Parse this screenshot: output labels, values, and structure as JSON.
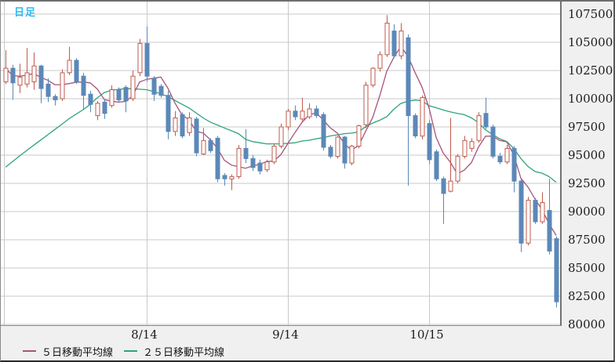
{
  "panel": {
    "title": "日足",
    "title_color": "#2cb9ee"
  },
  "colors": {
    "up_candle": "#bf5b4d",
    "down_candle": "#5b88b8",
    "ma5_line": "#a8537b",
    "ma25_line": "#2fa37b",
    "gridline": "#c9c9c9",
    "axis_text": "#1c1c1c",
    "plot_bg": "#ffffff",
    "frame_bg": "#f0f0f0"
  },
  "legend": {
    "items": [
      {
        "label": "５日移動平均線",
        "color": "#a8537b"
      },
      {
        "label": "２５日移動平均線",
        "color": "#2fa37b"
      }
    ]
  },
  "chart_data": {
    "type": "candlestick",
    "title": "日足",
    "ylabel": "",
    "xlabel": "",
    "grid": true,
    "legend_position": "bottom",
    "y_ticks": [
      107500,
      105000,
      102500,
      100000,
      97500,
      95000,
      92500,
      90000,
      87500,
      85000,
      82500,
      80000
    ],
    "y_visible_range": [
      79930,
      108611
    ],
    "x_ticks": [
      {
        "label": "8/14",
        "index": 20
      },
      {
        "label": "9/14",
        "index": 40
      },
      {
        "label": "10/15",
        "index": 60
      }
    ],
    "candles_ohlc": [
      [
        101500,
        104300,
        101300,
        102700
      ],
      [
        102700,
        103000,
        99900,
        101400
      ],
      [
        101200,
        103100,
        100500,
        101900
      ],
      [
        101300,
        104500,
        101000,
        102300
      ],
      [
        101500,
        104100,
        100800,
        102900
      ],
      [
        102900,
        103000,
        99600,
        100900
      ],
      [
        101300,
        101800,
        99700,
        100200
      ],
      [
        100200,
        100400,
        99400,
        99900
      ],
      [
        100000,
        102600,
        99800,
        102300
      ],
      [
        102300,
        104600,
        102100,
        103400
      ],
      [
        103400,
        103600,
        101300,
        101500
      ],
      [
        102000,
        102300,
        99000,
        100300
      ],
      [
        100400,
        100700,
        98800,
        99500
      ],
      [
        98500,
        99800,
        98100,
        99600
      ],
      [
        99700,
        99900,
        98200,
        98700
      ],
      [
        99400,
        101200,
        99200,
        100800
      ],
      [
        100800,
        101000,
        99700,
        99900
      ],
      [
        101000,
        101200,
        98800,
        99800
      ],
      [
        100000,
        102500,
        99800,
        102000
      ],
      [
        102300,
        105300,
        102000,
        104900
      ],
      [
        104900,
        106400,
        101500,
        102000
      ],
      [
        101800,
        102000,
        99800,
        100400
      ],
      [
        101100,
        101300,
        100100,
        100300
      ],
      [
        100300,
        100700,
        96400,
        97100
      ],
      [
        97100,
        98900,
        96700,
        98300
      ],
      [
        98600,
        98800,
        96500,
        96700
      ],
      [
        97000,
        98800,
        96700,
        98300
      ],
      [
        98200,
        98400,
        94900,
        95200
      ],
      [
        95100,
        97400,
        95000,
        96300
      ],
      [
        96300,
        96500,
        95200,
        95400
      ],
      [
        96500,
        96700,
        92600,
        92900
      ],
      [
        93200,
        93400,
        92300,
        92900
      ],
      [
        92900,
        93300,
        91900,
        93100
      ],
      [
        93100,
        95900,
        92900,
        95600
      ],
      [
        95600,
        97300,
        94300,
        94700
      ],
      [
        94700,
        95000,
        93600,
        93900
      ],
      [
        94300,
        94600,
        93300,
        93600
      ],
      [
        93700,
        94600,
        93500,
        94400
      ],
      [
        94400,
        96000,
        94200,
        95800
      ],
      [
        95800,
        97800,
        95600,
        97500
      ],
      [
        97500,
        99100,
        97200,
        98900
      ],
      [
        98900,
        99400,
        98100,
        98400
      ],
      [
        98200,
        100100,
        98000,
        98900
      ],
      [
        98400,
        99600,
        98200,
        99100
      ],
      [
        99100,
        99400,
        98300,
        98500
      ],
      [
        98600,
        98800,
        95400,
        95700
      ],
      [
        95700,
        95900,
        94700,
        94900
      ],
      [
        94900,
        96700,
        94700,
        96600
      ],
      [
        96600,
        96700,
        93800,
        94300
      ],
      [
        94300,
        95900,
        94100,
        95800
      ],
      [
        95800,
        97700,
        95600,
        97600
      ],
      [
        97700,
        101500,
        97400,
        101200
      ],
      [
        101200,
        102800,
        101000,
        102700
      ],
      [
        102700,
        104200,
        102400,
        103900
      ],
      [
        103900,
        107400,
        103700,
        106700
      ],
      [
        106000,
        106600,
        103600,
        103800
      ],
      [
        103800,
        106700,
        103500,
        106000
      ],
      [
        105400,
        105700,
        92300,
        98500
      ],
      [
        98500,
        98700,
        96500,
        96700
      ],
      [
        96700,
        100300,
        96400,
        100100
      ],
      [
        97800,
        98100,
        94200,
        94600
      ],
      [
        95300,
        95500,
        92700,
        92900
      ],
      [
        92900,
        93100,
        88900,
        91600
      ],
      [
        91800,
        98300,
        91700,
        92700
      ],
      [
        92700,
        95100,
        92500,
        94900
      ],
      [
        94900,
        96700,
        94700,
        96300
      ],
      [
        95600,
        96500,
        95300,
        96200
      ],
      [
        96300,
        98800,
        96100,
        98500
      ],
      [
        98700,
        100100,
        97300,
        97500
      ],
      [
        97500,
        97700,
        94700,
        94900
      ],
      [
        94900,
        95200,
        94200,
        94400
      ],
      [
        94400,
        95900,
        94200,
        95600
      ],
      [
        95600,
        95800,
        91700,
        92700
      ],
      [
        92700,
        92900,
        86400,
        87200
      ],
      [
        87200,
        91300,
        87000,
        91000
      ],
      [
        91000,
        91200,
        88900,
        89100
      ],
      [
        89100,
        91700,
        88900,
        90800
      ],
      [
        90100,
        92900,
        86200,
        86500
      ],
      [
        87600,
        87800,
        81500,
        82000
      ]
    ],
    "series": [
      {
        "name": "５日移動平均線",
        "values": [
          102700,
          102050,
          102000,
          102075,
          102240,
          101880,
          101640,
          101240,
          101240,
          101340,
          101460,
          101480,
          101400,
          100860,
          99920,
          99780,
          99700,
          99760,
          100240,
          101480,
          101720,
          101820,
          101920,
          100940,
          99620,
          98560,
          98140,
          97120,
          96960,
          96380,
          95620,
          94540,
          94120,
          93980,
          93840,
          94040,
          94180,
          94440,
          94480,
          95040,
          96040,
          97000,
          97900,
          98560,
          98760,
          98120,
          97420,
          96960,
          96000,
          95460,
          95840,
          97100,
          98320,
          100240,
          102420,
          103660,
          104620,
          103780,
          102340,
          101020,
          99180,
          96560,
          95180,
          94380,
          93340,
          93680,
          94340,
          95720,
          96680,
          96680,
          96300,
          96180,
          95020,
          92960,
          92180,
          91120,
          90160,
          88920,
          87880
        ]
      },
      {
        "name": "２５日移動平均線",
        "values": [
          93930,
          94430,
          94930,
          95410,
          95880,
          96340,
          96810,
          97280,
          97740,
          98230,
          98630,
          99030,
          99500,
          100090,
          100550,
          100750,
          100830,
          100890,
          100880,
          100840,
          100800,
          100630,
          100430,
          100190,
          99850,
          99510,
          99180,
          98740,
          98300,
          97930,
          97670,
          97410,
          97160,
          96900,
          96400,
          96200,
          96100,
          96000,
          96000,
          96000,
          96050,
          96100,
          96250,
          96320,
          96450,
          96550,
          96700,
          96800,
          96900,
          96950,
          97050,
          97520,
          97840,
          98090,
          98400,
          99060,
          99580,
          99770,
          99880,
          99820,
          99380,
          99200,
          99000,
          98830,
          98700,
          98580,
          98300,
          97880,
          97230,
          96830,
          96450,
          96200,
          95600,
          94700,
          94000,
          93550,
          93400,
          93100,
          92600
        ]
      }
    ]
  }
}
